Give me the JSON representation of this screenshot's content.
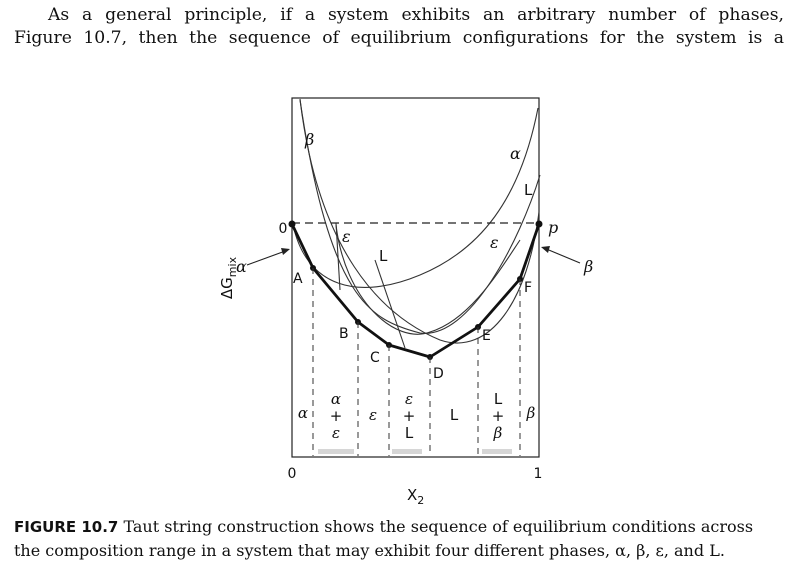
{
  "paragraph": {
    "line1": "As a general principle, if a system exhibits an arbitrary number of phases,",
    "line2": "Figure 10.7, then the sequence of equilibrium configurations for the system is a"
  },
  "figure": {
    "y_axis_label_main": "ΔG",
    "y_axis_label_sub": "mix",
    "x_axis_label_main": "X",
    "x_axis_label_sub": "2",
    "x_tick_0": "0",
    "x_tick_1": "1",
    "y_tick_0": "0",
    "endpoint_p": "p",
    "curve_labels": {
      "beta_left": "β",
      "alpha_right": "α",
      "L_right": "L",
      "epsilon_dashed": "ε",
      "L_dashed": "L",
      "epsilon_right": "ε"
    },
    "arrow_labels": {
      "alpha": "α",
      "beta": "β"
    },
    "tangent_points": [
      "A",
      "B",
      "C",
      "D",
      "E",
      "F"
    ],
    "region_labels": {
      "alpha": "α",
      "alpha_eps": [
        "α",
        "+",
        "ε"
      ],
      "epsilon": "ε",
      "eps_L": [
        "ε",
        "+",
        "L"
      ],
      "L": "L",
      "L_beta": [
        "L",
        "+",
        "β"
      ],
      "beta": "β"
    }
  },
  "caption": {
    "label": "FIGURE 10.7",
    "line1": "Taut string construction shows the sequence of equilibrium conditions across",
    "line2": "the composition range in a system that may exhibit four different phases, α, β, ε, and L."
  }
}
